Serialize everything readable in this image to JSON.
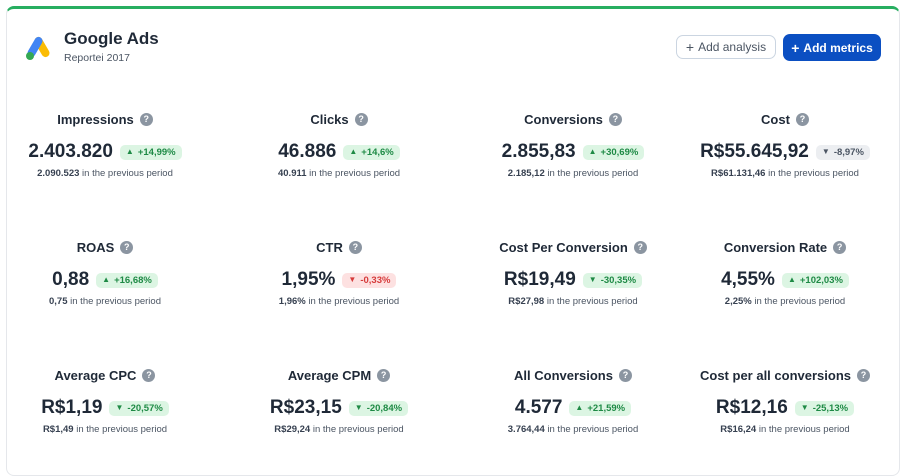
{
  "header": {
    "title": "Google Ads",
    "subtitle": "Reportei 2017",
    "logo_icon": "google-ads-logo",
    "add_analysis_label": "Add analysis",
    "add_metrics_label": "Add metrics",
    "accent_color": "#0b4fc2",
    "top_border_color": "#27ae60"
  },
  "prev_suffix": "in the previous period",
  "metrics": [
    {
      "title": "Impressions",
      "value": "2.403.820",
      "change": "+14,99%",
      "trend": "up",
      "prev": "2.090.523"
    },
    {
      "title": "Clicks",
      "value": "46.886",
      "change": "+14,6%",
      "trend": "up",
      "prev": "40.911"
    },
    {
      "title": "Conversions",
      "value": "2.855,83",
      "change": "+30,69%",
      "trend": "up",
      "prev": "2.185,12"
    },
    {
      "title": "Cost",
      "value": "R$55.645,92",
      "change": "-8,97%",
      "trend": "down-neutral",
      "prev": "R$61.131,46"
    },
    {
      "title": "ROAS",
      "value": "0,88",
      "change": "+16,68%",
      "trend": "up",
      "prev": "0,75"
    },
    {
      "title": "CTR",
      "value": "1,95%",
      "change": "-0,33%",
      "trend": "down-bad",
      "prev": "1,96%"
    },
    {
      "title": "Cost Per Conversion",
      "value": "R$19,49",
      "change": "-30,35%",
      "trend": "down-good",
      "prev": "R$27,98"
    },
    {
      "title": "Conversion Rate",
      "value": "4,55%",
      "change": "+102,03%",
      "trend": "up",
      "prev": "2,25%"
    },
    {
      "title": "Average CPC",
      "value": "R$1,19",
      "change": "-20,57%",
      "trend": "down-good",
      "prev": "R$1,49"
    },
    {
      "title": "Average CPM",
      "value": "R$23,15",
      "change": "-20,84%",
      "trend": "down-good",
      "prev": "R$29,24"
    },
    {
      "title": "All Conversions",
      "value": "4.577",
      "change": "+21,59%",
      "trend": "up",
      "prev": "3.764,44"
    },
    {
      "title": "Cost per all conversions",
      "value": "R$12,16",
      "change": "-25,13%",
      "trend": "down-good",
      "prev": "R$16,24"
    }
  ]
}
